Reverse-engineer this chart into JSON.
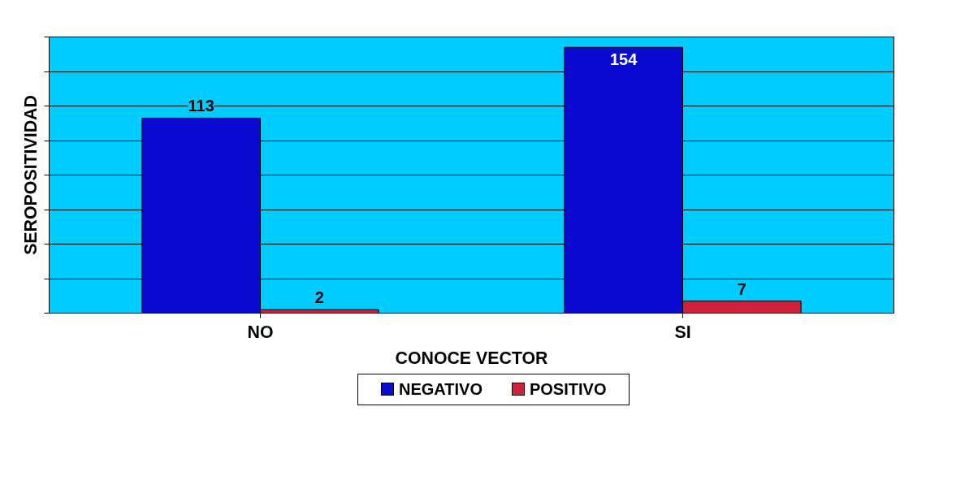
{
  "chart_data": {
    "type": "bar",
    "xlabel": "CONOCE VECTOR",
    "ylabel": "SEROPOSITIVIDAD",
    "categories": [
      "NO",
      "SI"
    ],
    "series": [
      {
        "name": "NEGATIVO",
        "color": "#0a0ad0",
        "values": [
          113,
          154
        ]
      },
      {
        "name": "POSITIVO",
        "color": "#d0203a",
        "values": [
          2,
          7
        ]
      }
    ],
    "ylim": [
      0,
      160
    ],
    "yticks": [
      {
        "value": 0,
        "label": null
      },
      {
        "value": 20,
        "label": null
      },
      {
        "value": 40,
        "label": null
      },
      {
        "value": 60,
        "label": null
      },
      {
        "value": 80,
        "label": null
      },
      {
        "value": 100,
        "label": null
      },
      {
        "value": 120,
        "label": null
      },
      {
        "value": 140,
        "label": null
      },
      {
        "value": 160,
        "label": null
      }
    ],
    "tick_labels": "x",
    "grid": "y",
    "legend": "bottom",
    "data_labels": true
  }
}
